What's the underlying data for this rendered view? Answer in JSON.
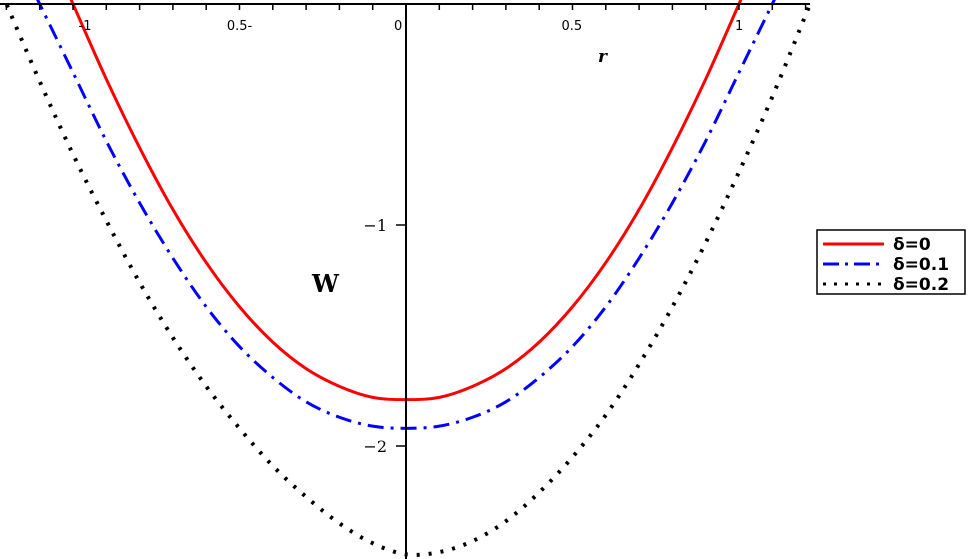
{
  "chart_data": {
    "type": "line",
    "title": "",
    "xlabel": "r",
    "ylabel": "W",
    "xlim": [
      -1.22,
      1.22
    ],
    "ylim": [
      -2.5,
      0
    ],
    "grid": false,
    "legend_position": "right",
    "x_ticks": [
      {
        "value": -1,
        "label": "-1"
      },
      {
        "value": -0.5,
        "label": "0.5-"
      },
      {
        "value": 0,
        "label": "0"
      },
      {
        "value": 0.5,
        "label": "0.5"
      },
      {
        "value": 1,
        "label": "1"
      }
    ],
    "y_ticks": [
      {
        "value": -1,
        "label": "−1"
      },
      {
        "value": -2,
        "label": "−2"
      }
    ],
    "x": [
      -1.2,
      -1.1,
      -1.0,
      -0.9,
      -0.8,
      -0.7,
      -0.6,
      -0.5,
      -0.4,
      -0.3,
      -0.2,
      -0.1,
      0,
      0.1,
      0.2,
      0.3,
      0.4,
      0.5,
      0.6,
      0.7,
      0.8,
      0.9,
      1.0,
      1.1,
      1.2
    ],
    "series": [
      {
        "name": "δ=0",
        "color": "#ff0000",
        "style": "solid",
        "values": [
          null,
          null,
          0.0,
          -0.34,
          -0.65,
          -0.93,
          -1.17,
          -1.37,
          -1.53,
          -1.65,
          -1.73,
          -1.78,
          -1.79,
          -1.78,
          -1.73,
          -1.65,
          -1.53,
          -1.37,
          -1.17,
          -0.93,
          -0.65,
          -0.34,
          0.0,
          null,
          null
        ]
      },
      {
        "name": "δ=0.1",
        "color": "#0000ff",
        "style": "dashdot",
        "values": [
          null,
          0.0,
          -0.31,
          -0.62,
          -0.9,
          -1.15,
          -1.37,
          -1.55,
          -1.69,
          -1.8,
          -1.87,
          -1.91,
          -1.92,
          -1.91,
          -1.87,
          -1.8,
          -1.69,
          -1.55,
          -1.37,
          -1.15,
          -0.9,
          -0.62,
          -0.31,
          0.0,
          null
        ]
      },
      {
        "name": "δ=0.2",
        "color": "#000000",
        "style": "dotted",
        "values": [
          0.0,
          -0.35,
          -0.68,
          -0.98,
          -1.26,
          -1.51,
          -1.73,
          -1.92,
          -2.09,
          -2.23,
          -2.35,
          -2.44,
          -2.49,
          -2.48,
          -2.43,
          -2.34,
          -2.21,
          -2.05,
          -1.86,
          -1.63,
          -1.37,
          -1.08,
          -0.76,
          -0.42,
          -0.05
        ]
      }
    ]
  },
  "legend": {
    "items": [
      {
        "label": "δ=0"
      },
      {
        "label": "δ=0.1"
      },
      {
        "label": "δ=0.2"
      }
    ]
  },
  "axes": {
    "x_name": "r",
    "y_name": "W"
  }
}
